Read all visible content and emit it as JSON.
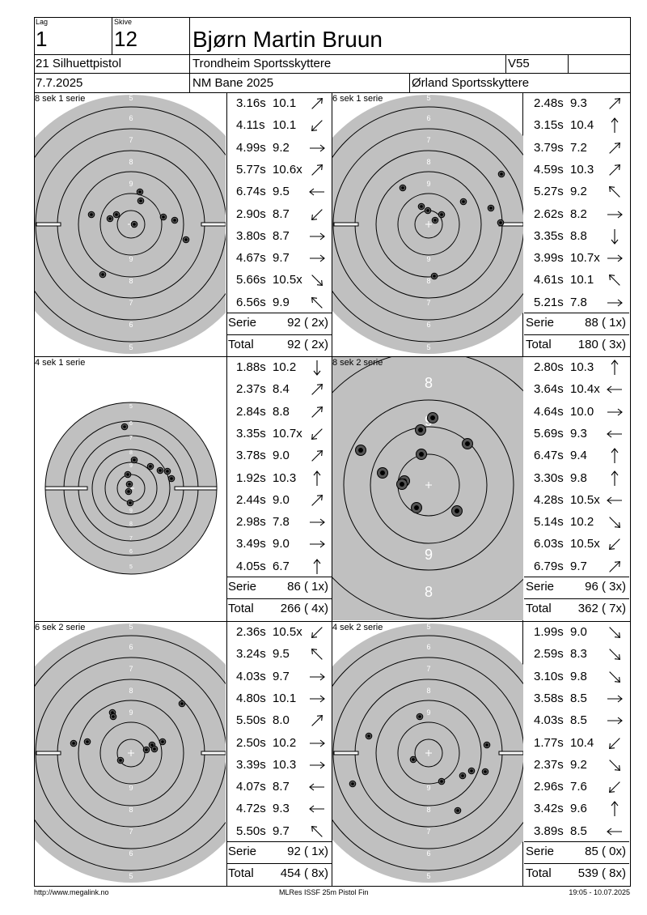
{
  "header": {
    "lag_label": "Lag",
    "lag_value": "1",
    "skive_label": "Skive",
    "skive_value": "12",
    "shooter_name": "Bjørn Martin Bruun",
    "class_name": "21 Silhuettpistol",
    "club": "Trondheim Sportsskyttere",
    "age_class": "V55",
    "date": "7.7.2025",
    "event": "NM Bane 2025",
    "venue_club": "Ørland Sportsskyttere"
  },
  "series": [
    {
      "title": "8 sek 1 serie",
      "target": "full",
      "shots": [
        {
          "time": "3.16s",
          "score": "10.1",
          "arrow": "ne"
        },
        {
          "time": "4.11s",
          "score": "10.1",
          "arrow": "sw"
        },
        {
          "time": "4.99s",
          "score": "9.2",
          "arrow": "e"
        },
        {
          "time": "5.77s",
          "score": "10.6x",
          "arrow": "ne"
        },
        {
          "time": "6.74s",
          "score": "9.5",
          "arrow": "w"
        },
        {
          "time": "2.90s",
          "score": "8.7",
          "arrow": "sw"
        },
        {
          "time": "3.80s",
          "score": "8.7",
          "arrow": "e"
        },
        {
          "time": "4.67s",
          "score": "9.7",
          "arrow": "e"
        },
        {
          "time": "5.66s",
          "score": "10.5x",
          "arrow": "se"
        },
        {
          "time": "6.56s",
          "score": "9.9",
          "arrow": "nw"
        }
      ],
      "serie_label": "Serie",
      "serie_value": "92 ( 2x)",
      "total_label": "Total",
      "total_value": "92 ( 2x)"
    },
    {
      "title": "6 sek 1 serie",
      "target": "full",
      "shots": [
        {
          "time": "2.48s",
          "score": "9.3",
          "arrow": "ne"
        },
        {
          "time": "3.15s",
          "score": "10.4",
          "arrow": "n"
        },
        {
          "time": "3.79s",
          "score": "7.2",
          "arrow": "ne"
        },
        {
          "time": "4.59s",
          "score": "10.3",
          "arrow": "ne"
        },
        {
          "time": "5.27s",
          "score": "9.2",
          "arrow": "nw"
        },
        {
          "time": "2.62s",
          "score": "8.2",
          "arrow": "e"
        },
        {
          "time": "3.35s",
          "score": "8.8",
          "arrow": "s"
        },
        {
          "time": "3.99s",
          "score": "10.7x",
          "arrow": "e"
        },
        {
          "time": "4.61s",
          "score": "10.1",
          "arrow": "nw"
        },
        {
          "time": "5.21s",
          "score": "7.8",
          "arrow": "e"
        }
      ],
      "serie_label": "Serie",
      "serie_value": "88 ( 1x)",
      "total_label": "Total",
      "total_value": "180 ( 3x)"
    },
    {
      "title": "4 sek 1 serie",
      "target": "small",
      "shots": [
        {
          "time": "1.88s",
          "score": "10.2",
          "arrow": "s"
        },
        {
          "time": "2.37s",
          "score": "8.4",
          "arrow": "ne"
        },
        {
          "time": "2.84s",
          "score": "8.8",
          "arrow": "ne"
        },
        {
          "time": "3.35s",
          "score": "10.7x",
          "arrow": "sw"
        },
        {
          "time": "3.78s",
          "score": "9.0",
          "arrow": "ne"
        },
        {
          "time": "1.92s",
          "score": "10.3",
          "arrow": "n"
        },
        {
          "time": "2.44s",
          "score": "9.0",
          "arrow": "ne"
        },
        {
          "time": "2.98s",
          "score": "7.8",
          "arrow": "e"
        },
        {
          "time": "3.49s",
          "score": "9.0",
          "arrow": "e"
        },
        {
          "time": "4.05s",
          "score": "6.7",
          "arrow": "n"
        }
      ],
      "serie_label": "Serie",
      "serie_value": "86 ( 1x)",
      "total_label": "Total",
      "total_value": "266 ( 4x)"
    },
    {
      "title": "8 sek 2 serie",
      "target": "zoom",
      "shots": [
        {
          "time": "2.80s",
          "score": "10.3",
          "arrow": "n"
        },
        {
          "time": "3.64s",
          "score": "10.4x",
          "arrow": "w"
        },
        {
          "time": "4.64s",
          "score": "10.0",
          "arrow": "e"
        },
        {
          "time": "5.69s",
          "score": "9.3",
          "arrow": "w"
        },
        {
          "time": "6.47s",
          "score": "9.4",
          "arrow": "n"
        },
        {
          "time": "3.30s",
          "score": "9.8",
          "arrow": "n"
        },
        {
          "time": "4.28s",
          "score": "10.5x",
          "arrow": "w"
        },
        {
          "time": "5.14s",
          "score": "10.2",
          "arrow": "se"
        },
        {
          "time": "6.03s",
          "score": "10.5x",
          "arrow": "sw"
        },
        {
          "time": "6.79s",
          "score": "9.7",
          "arrow": "ne"
        }
      ],
      "serie_label": "Serie",
      "serie_value": "96 ( 3x)",
      "total_label": "Total",
      "total_value": "362 ( 7x)"
    },
    {
      "title": "6 sek 2 serie",
      "target": "full",
      "shots": [
        {
          "time": "2.36s",
          "score": "10.5x",
          "arrow": "sw"
        },
        {
          "time": "3.24s",
          "score": "9.5",
          "arrow": "nw"
        },
        {
          "time": "4.03s",
          "score": "9.7",
          "arrow": "e"
        },
        {
          "time": "4.80s",
          "score": "10.1",
          "arrow": "e"
        },
        {
          "time": "5.50s",
          "score": "8.0",
          "arrow": "ne"
        },
        {
          "time": "2.50s",
          "score": "10.2",
          "arrow": "e"
        },
        {
          "time": "3.39s",
          "score": "10.3",
          "arrow": "e"
        },
        {
          "time": "4.07s",
          "score": "8.7",
          "arrow": "w"
        },
        {
          "time": "4.72s",
          "score": "9.3",
          "arrow": "w"
        },
        {
          "time": "5.50s",
          "score": "9.7",
          "arrow": "nw"
        }
      ],
      "serie_label": "Serie",
      "serie_value": "92 ( 1x)",
      "total_label": "Total",
      "total_value": "454 ( 8x)"
    },
    {
      "title": "4 sek 2 serie",
      "target": "full",
      "shots": [
        {
          "time": "1.99s",
          "score": "9.0",
          "arrow": "se"
        },
        {
          "time": "2.59s",
          "score": "8.3",
          "arrow": "se"
        },
        {
          "time": "3.10s",
          "score": "9.8",
          "arrow": "se"
        },
        {
          "time": "3.58s",
          "score": "8.5",
          "arrow": "e"
        },
        {
          "time": "4.03s",
          "score": "8.5",
          "arrow": "e"
        },
        {
          "time": "1.77s",
          "score": "10.4",
          "arrow": "sw"
        },
        {
          "time": "2.37s",
          "score": "9.2",
          "arrow": "se"
        },
        {
          "time": "2.96s",
          "score": "7.6",
          "arrow": "sw"
        },
        {
          "time": "3.42s",
          "score": "9.6",
          "arrow": "n"
        },
        {
          "time": "3.89s",
          "score": "8.5",
          "arrow": "w"
        }
      ],
      "serie_label": "Serie",
      "serie_value": "85 ( 0x)",
      "total_label": "Total",
      "total_value": "539 ( 8x)"
    }
  ],
  "ring_labels": {
    "full": [
      "5",
      "6",
      "7",
      "8",
      "9"
    ],
    "small": [
      "5",
      "6",
      "7",
      "8",
      "9"
    ],
    "zoom": [
      "8",
      "9"
    ]
  },
  "footer": {
    "left": "http://www.megalink.no",
    "center": "MLRes ISSF 25m Pistol Fin",
    "right": "19:05 - 10.07.2025"
  },
  "colors": {
    "target_grey": "#c0c0c0",
    "line": "#000000",
    "paper": "#ffffff"
  }
}
